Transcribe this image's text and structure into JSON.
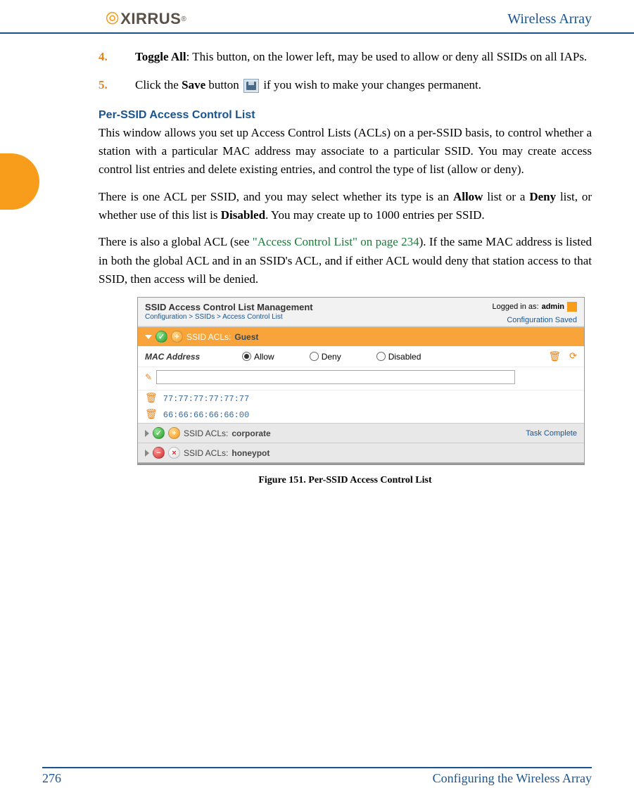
{
  "header": {
    "logo_text": "XIRRUS",
    "title": "Wireless Array"
  },
  "list": {
    "item4": {
      "num": "4.",
      "bold": "Toggle All",
      "rest": ": This button, on the lower left, may be used to allow or deny all SSIDs on all IAPs."
    },
    "item5": {
      "num": "5.",
      "pre": "Click the ",
      "bold": "Save",
      "mid": " button ",
      "rest": " if you wish to make your changes permanent."
    }
  },
  "section": {
    "heading": "Per-SSID Access Control List",
    "p1": "This window allows you set up Access Control Lists (ACLs) on a per-SSID basis, to control whether a station with a particular MAC address may associate to a particular SSID. You may create access control list entries and delete existing entries, and control the type of list (allow or deny).",
    "p2_a": "There is one ACL per SSID, and you may select whether its type is an ",
    "p2_b": "Allow",
    "p2_c": " list or a ",
    "p2_d": "Deny",
    "p2_e": " list, or whether use of this list is ",
    "p2_f": "Disabled",
    "p2_g": ". You may create up to 1000 entries per SSID.",
    "p3_a": "There is also a global ACL (see ",
    "p3_link": "\"Access Control List\" on page 234",
    "p3_b": "). If the same MAC address is listed in both the global ACL and in an SSID's ACL, and if either ACL would deny that station access to that SSID, then access will be denied."
  },
  "screenshot": {
    "title": "SSID Access Control List Management",
    "breadcrumb": "Configuration > SSIDs > Access Control List",
    "logged_in_label": "Logged in as: ",
    "logged_in_user": "admin",
    "config_saved": "Configuration Saved",
    "acl_label": "SSID ACLs: ",
    "acl1_name": "Guest",
    "mac_label": "MAC Address",
    "radio_allow": "Allow",
    "radio_deny": "Deny",
    "radio_disabled": "Disabled",
    "radio_selected": "Allow",
    "mac_input_value": "",
    "mac1": "77:77:77:77:77:77",
    "mac2": "66:66:66:66:66:00",
    "acl2_name": "corporate",
    "acl3_name": "honeypot",
    "task_complete": "Task Complete",
    "colors": {
      "bar_orange": "#f8a43a",
      "bar_gray": "#e8e8e8",
      "link_blue": "#1a5490",
      "icon_orange": "#e8841a"
    }
  },
  "figure_caption": "Figure 151. Per-SSID Access Control List",
  "footer": {
    "page": "276",
    "chapter": "Configuring the Wireless Array"
  }
}
